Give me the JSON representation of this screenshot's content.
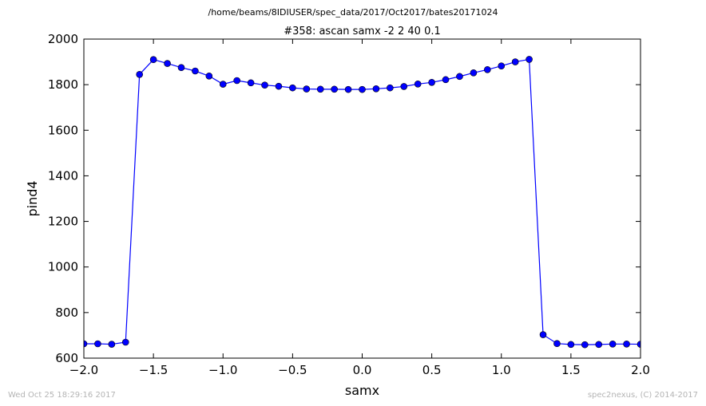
{
  "figure": {
    "suptitle": "/home/beams/8IDIUSER/spec_data/2017/Oct2017/bates20171024",
    "timestamp": "Wed Oct 25 18:29:16 2017",
    "credit": "spec2nexus, (C) 2014-2017"
  },
  "chart_data": {
    "type": "line",
    "title": "#358: ascan  samx -2 2  40 0.1",
    "xlabel": "samx",
    "ylabel": "pind4",
    "xlim": [
      -2.0,
      2.0
    ],
    "ylim": [
      600,
      2000
    ],
    "xticks": [
      "−2.0",
      "−1.5",
      "−1.0",
      "−0.5",
      "0.0",
      "0.5",
      "1.0",
      "1.5",
      "2.0"
    ],
    "yticks": [
      "600",
      "800",
      "1000",
      "1200",
      "1400",
      "1600",
      "1800",
      "2000"
    ],
    "grid": false,
    "series": [
      {
        "color": "#0000ff",
        "marker": "circle",
        "x": [
          -2.0,
          -1.9,
          -1.8,
          -1.7,
          -1.6,
          -1.5,
          -1.4,
          -1.3,
          -1.2,
          -1.1,
          -1.0,
          -0.9,
          -0.8,
          -0.7,
          -0.6,
          -0.5,
          -0.4,
          -0.3,
          -0.2,
          -0.1,
          0.0,
          0.1,
          0.2,
          0.3,
          0.4,
          0.5,
          0.6,
          0.7,
          0.8,
          0.9,
          1.0,
          1.1,
          1.2,
          1.3,
          1.4,
          1.5,
          1.6,
          1.7,
          1.8,
          1.9,
          2.0
        ],
        "y": [
          663,
          663,
          661,
          670,
          1845,
          1910,
          1893,
          1875,
          1860,
          1838,
          1802,
          1818,
          1808,
          1798,
          1793,
          1786,
          1781,
          1780,
          1780,
          1779,
          1779,
          1782,
          1786,
          1792,
          1803,
          1810,
          1822,
          1836,
          1852,
          1866,
          1882,
          1900,
          1911,
          703,
          664,
          660,
          659,
          660,
          662,
          662,
          661
        ]
      }
    ]
  }
}
